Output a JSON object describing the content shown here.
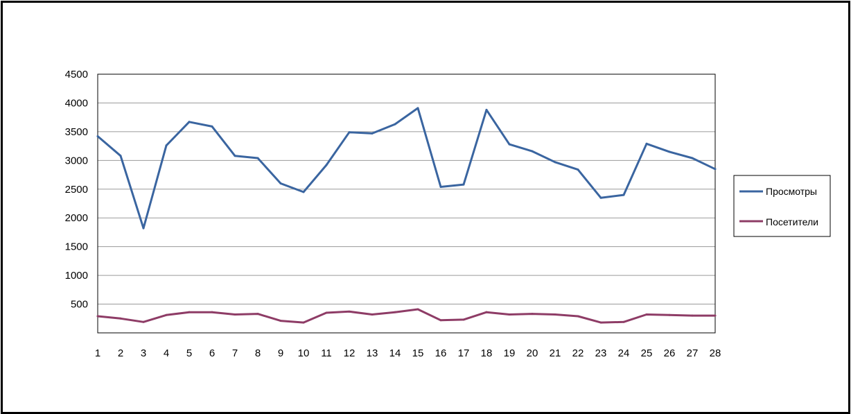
{
  "chart_data": {
    "type": "line",
    "title": "",
    "xlabel": "",
    "ylabel": "",
    "x": [
      1,
      2,
      3,
      4,
      5,
      6,
      7,
      8,
      9,
      10,
      11,
      12,
      13,
      14,
      15,
      16,
      17,
      18,
      19,
      20,
      21,
      22,
      23,
      24,
      25,
      26,
      27,
      28
    ],
    "ylim": [
      0,
      4500
    ],
    "yticks": [
      500,
      1000,
      1500,
      2000,
      2500,
      3000,
      3500,
      4000,
      4500
    ],
    "grid": true,
    "legend_position": "right",
    "series": [
      {
        "name": "Просмотры",
        "color": "#3A65A0",
        "values": [
          3420,
          3080,
          1820,
          3260,
          3670,
          3590,
          3080,
          3040,
          2600,
          2450,
          2920,
          3490,
          3470,
          3630,
          3910,
          2540,
          2580,
          3880,
          3280,
          3160,
          2970,
          2840,
          2350,
          2400,
          3290,
          3150,
          3040,
          2850
        ]
      },
      {
        "name": "Посетители",
        "color": "#8E3C66",
        "values": [
          290,
          250,
          190,
          310,
          360,
          360,
          320,
          330,
          210,
          180,
          350,
          370,
          320,
          360,
          410,
          220,
          230,
          360,
          320,
          330,
          320,
          290,
          180,
          190,
          320,
          310,
          300,
          300
        ]
      }
    ]
  }
}
